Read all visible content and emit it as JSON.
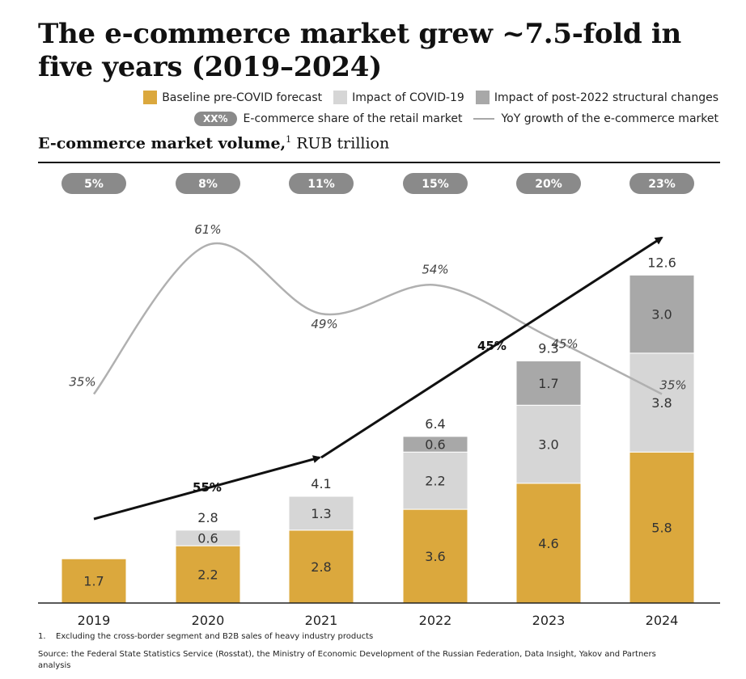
{
  "title": "The e-commerce market grew ~7.5-fold in five years (2019–2024)",
  "subtitle_bold": "E-commerce market volume,",
  "subtitle_sup": "1",
  "subtitle_rest": " RUB trillion",
  "legend": {
    "baseline": "Baseline pre-COVID forecast",
    "covid": "Impact of COVID-19",
    "structural": "Impact of post-2022 structural changes",
    "share_pill": "XX%",
    "share": "E-commerce share of the retail market",
    "yoy": "YoY growth of the e-commerce market"
  },
  "colors": {
    "baseline": "#dba83d",
    "covid": "#d6d6d6",
    "structural": "#a8a8a8",
    "pill": "#8a8a8a",
    "yoy_line": "#b0b0b0",
    "arrow": "#111111"
  },
  "chart_data": {
    "type": "bar",
    "stacked": true,
    "categories": [
      "2019",
      "2020",
      "2021",
      "2022",
      "2023",
      "2024"
    ],
    "series": [
      {
        "name": "Baseline pre-COVID forecast",
        "values": [
          1.7,
          2.2,
          2.8,
          3.6,
          4.6,
          5.8
        ]
      },
      {
        "name": "Impact of COVID-19",
        "values": [
          null,
          0.6,
          1.3,
          2.2,
          3.0,
          3.8
        ]
      },
      {
        "name": "Impact of post-2022 structural changes",
        "values": [
          null,
          null,
          null,
          0.6,
          1.7,
          3.0
        ]
      }
    ],
    "totals": [
      null,
      "2.8",
      "4.1",
      "6.4",
      "9.3",
      "12.6"
    ],
    "value_labels": {
      "baseline": [
        "1.7",
        "2.2",
        "2.8",
        "3.6",
        "4.6",
        "5.8"
      ],
      "covid": [
        null,
        "0.6",
        "1.3",
        "2.2",
        "3.0",
        "3.8"
      ],
      "structural": [
        null,
        null,
        null,
        "0.6",
        "1.7",
        "3.0"
      ]
    },
    "ylim": [
      0,
      12.6
    ],
    "share_of_retail": [
      "5%",
      "8%",
      "11%",
      "15%",
      "20%",
      "23%"
    ],
    "yoy_growth": {
      "x": [
        "2019",
        "2020",
        "2021",
        "2022",
        "2023",
        "2024"
      ],
      "values": [
        35,
        61,
        49,
        54,
        45,
        35
      ],
      "labels": [
        "35%",
        "61%",
        "49%",
        "54%",
        "45%",
        "35%"
      ]
    },
    "cagr": [
      {
        "from": "2019",
        "to": "2021",
        "label": "55%"
      },
      {
        "from": "2021",
        "to": "2024",
        "label": "45%"
      }
    ]
  },
  "footnote": {
    "num": "1.",
    "text": "Excluding the cross-border segment and B2B sales of heavy industry products"
  },
  "source": "Source: the Federal State Statistics Service (Rosstat), the Ministry of Economic Development of the Russian Federation, Data Insight, Yakov and Partners analysis"
}
